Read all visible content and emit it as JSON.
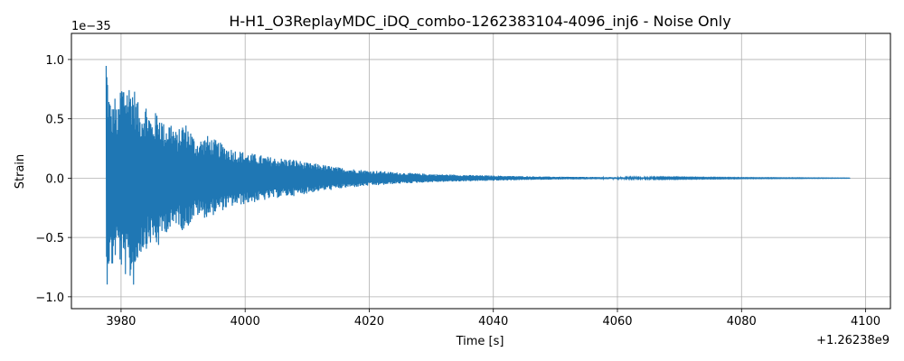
{
  "chart_data": {
    "type": "line",
    "title": "H-H1_O3ReplayMDC_iDQ_combo-1262383104-4096_inj6 - Noise Only",
    "xlabel": "Time [s]",
    "ylabel": "Strain",
    "x_offset_label": "+1.26238e9",
    "y_scale_label": "1e−35",
    "xlim": [
      3972,
      4104
    ],
    "ylim": [
      -1.1,
      1.22
    ],
    "x_ticks": [
      3980,
      4000,
      4020,
      4040,
      4060,
      4080,
      4100
    ],
    "x_tick_labels": [
      "3980",
      "4000",
      "4020",
      "4040",
      "4060",
      "4080",
      "4100"
    ],
    "y_ticks": [
      -1.0,
      -0.5,
      0.0,
      0.5,
      1.0
    ],
    "y_tick_labels": [
      "−1.0",
      "−0.5",
      "0.0",
      "0.5",
      "1.0"
    ],
    "grid": true,
    "color": "#1f77b4",
    "series": [
      {
        "upper_envelope": [
          [
            3977.6,
            1.12
          ],
          [
            3978.0,
            0.75
          ],
          [
            3978.5,
            0.6
          ],
          [
            3979.0,
            0.7
          ],
          [
            3979.5,
            0.55
          ],
          [
            3980.0,
            0.85
          ],
          [
            3981.0,
            0.82
          ],
          [
            3982.0,
            0.8
          ],
          [
            3983.0,
            0.58
          ],
          [
            3984.0,
            0.65
          ],
          [
            3985.0,
            0.5
          ],
          [
            3986.0,
            0.6
          ],
          [
            3987.0,
            0.45
          ],
          [
            3988.0,
            0.5
          ],
          [
            3989.0,
            0.38
          ],
          [
            3990.0,
            0.48
          ],
          [
            3991.0,
            0.44
          ],
          [
            3992.0,
            0.32
          ],
          [
            3994.0,
            0.36
          ],
          [
            3996.0,
            0.3
          ],
          [
            3998.0,
            0.25
          ],
          [
            4000.0,
            0.22
          ],
          [
            4002.0,
            0.2
          ],
          [
            4004.0,
            0.18
          ],
          [
            4006.0,
            0.17
          ],
          [
            4008.0,
            0.16
          ],
          [
            4010.0,
            0.13
          ],
          [
            4012.0,
            0.12
          ],
          [
            4014.0,
            0.1
          ],
          [
            4016.0,
            0.085
          ],
          [
            4018.0,
            0.075
          ],
          [
            4020.0,
            0.065
          ],
          [
            4022.0,
            0.06
          ],
          [
            4024.0,
            0.05
          ],
          [
            4026.0,
            0.045
          ],
          [
            4030.0,
            0.035
          ],
          [
            4035.0,
            0.028
          ],
          [
            4040.0,
            0.022
          ],
          [
            4045.0,
            0.016
          ],
          [
            4050.0,
            0.012
          ],
          [
            4060.0,
            0.008
          ],
          [
            4070.0,
            0.005
          ],
          [
            4080.0,
            0.003
          ],
          [
            4090.0,
            0.002
          ],
          [
            4097.5,
            0.001
          ]
        ],
        "lower_envelope": [
          [
            3977.6,
            -1.0
          ],
          [
            3978.0,
            -0.75
          ],
          [
            3978.5,
            -0.8
          ],
          [
            3979.0,
            -0.7
          ],
          [
            3979.5,
            -0.62
          ],
          [
            3980.0,
            -0.78
          ],
          [
            3981.0,
            -0.85
          ],
          [
            3982.0,
            -0.92
          ],
          [
            3983.0,
            -0.65
          ],
          [
            3984.0,
            -0.6
          ],
          [
            3985.0,
            -0.55
          ],
          [
            3986.0,
            -0.6
          ],
          [
            3987.0,
            -0.45
          ],
          [
            3988.0,
            -0.48
          ],
          [
            3989.0,
            -0.38
          ],
          [
            3990.0,
            -0.45
          ],
          [
            3991.0,
            -0.4
          ],
          [
            3992.0,
            -0.32
          ],
          [
            3994.0,
            -0.34
          ],
          [
            3996.0,
            -0.28
          ],
          [
            3998.0,
            -0.24
          ],
          [
            4000.0,
            -0.22
          ],
          [
            4002.0,
            -0.2
          ],
          [
            4004.0,
            -0.18
          ],
          [
            4006.0,
            -0.16
          ],
          [
            4008.0,
            -0.15
          ],
          [
            4010.0,
            -0.13
          ],
          [
            4012.0,
            -0.11
          ],
          [
            4014.0,
            -0.1
          ],
          [
            4016.0,
            -0.085
          ],
          [
            4018.0,
            -0.075
          ],
          [
            4020.0,
            -0.065
          ],
          [
            4022.0,
            -0.06
          ],
          [
            4024.0,
            -0.05
          ],
          [
            4026.0,
            -0.045
          ],
          [
            4030.0,
            -0.035
          ],
          [
            4035.0,
            -0.028
          ],
          [
            4040.0,
            -0.022
          ],
          [
            4045.0,
            -0.016
          ],
          [
            4050.0,
            -0.012
          ],
          [
            4060.0,
            -0.008
          ],
          [
            4070.0,
            -0.005
          ],
          [
            4080.0,
            -0.003
          ],
          [
            4090.0,
            -0.002
          ],
          [
            4097.5,
            -0.001
          ]
        ]
      }
    ]
  }
}
